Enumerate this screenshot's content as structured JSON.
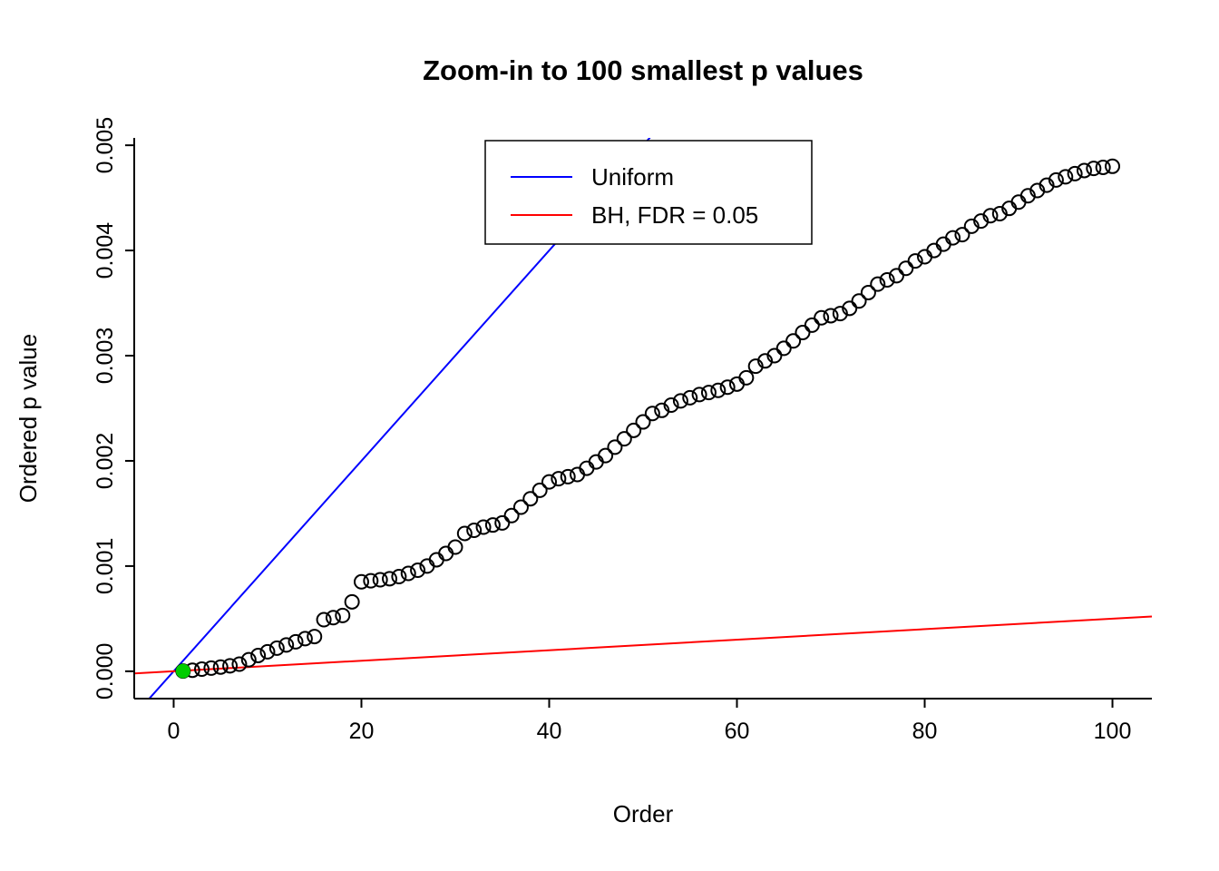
{
  "figure": {
    "background": "#FFFFFF",
    "frame_color": "#000000"
  },
  "chart_data": {
    "type": "scatter",
    "title": "Zoom-in to 100 smallest p values",
    "xlabel": "Order",
    "ylabel": "Ordered p value",
    "xlim": [
      -4.2,
      104.2
    ],
    "ylim": [
      -0.00026,
      0.00507
    ],
    "x_ticks": [
      0,
      20,
      40,
      60,
      80,
      100
    ],
    "x_tick_labels": [
      "0",
      "20",
      "40",
      "60",
      "80",
      "100"
    ],
    "y_ticks": [
      0,
      0.001,
      0.002,
      0.003,
      0.004,
      0.005
    ],
    "y_tick_labels": [
      "0.000",
      "0.001",
      "0.002",
      "0.003",
      "0.004",
      "0.005"
    ],
    "grid": false,
    "x_start": 1,
    "point_color": "#000000",
    "values": [
      2e-06,
      1e-05,
      2e-05,
      3e-05,
      4e-05,
      5.2e-05,
      6.8e-05,
      0.00011,
      0.00015,
      0.000185,
      0.00022,
      0.00025,
      0.00028,
      0.00031,
      0.00033,
      0.00049,
      0.00051,
      0.00053,
      0.00066,
      0.00085,
      0.00086,
      0.00087,
      0.00088,
      0.0009,
      0.00093,
      0.00096,
      0.001,
      0.00106,
      0.00112,
      0.00118,
      0.00131,
      0.00134,
      0.00137,
      0.00139,
      0.00141,
      0.00148,
      0.00156,
      0.00164,
      0.00172,
      0.0018,
      0.00183,
      0.00185,
      0.00187,
      0.00193,
      0.00199,
      0.00205,
      0.00213,
      0.00221,
      0.00229,
      0.00237,
      0.00245,
      0.00248,
      0.00253,
      0.00257,
      0.0026,
      0.00263,
      0.00265,
      0.00267,
      0.0027,
      0.00273,
      0.00279,
      0.0029,
      0.00295,
      0.003,
      0.00307,
      0.00314,
      0.00322,
      0.00329,
      0.00336,
      0.00338,
      0.0034,
      0.00345,
      0.00352,
      0.0036,
      0.00368,
      0.00372,
      0.00376,
      0.00383,
      0.0039,
      0.00394,
      0.004,
      0.00406,
      0.00412,
      0.00415,
      0.00423,
      0.00428,
      0.00433,
      0.00435,
      0.0044,
      0.00446,
      0.00452,
      0.00457,
      0.00462,
      0.00467,
      0.0047,
      0.00473,
      0.00476,
      0.00478,
      0.00479,
      0.0048
    ],
    "highlight_point": {
      "x": 1,
      "y": 2e-06,
      "color": "#00CD00"
    },
    "lines": [
      {
        "name": "uniform",
        "label": "Uniform",
        "color": "#0000FF",
        "slope": 0.0001,
        "intercept": 0
      },
      {
        "name": "bh",
        "label": "BH, FDR = 0.05",
        "color": "#FF0000",
        "slope": 5e-06,
        "intercept": 0
      }
    ],
    "legend": {
      "position": "top",
      "entries": [
        {
          "label": "Uniform",
          "color": "#0000FF"
        },
        {
          "label": "BH, FDR = 0.05",
          "color": "#FF0000"
        }
      ]
    }
  }
}
